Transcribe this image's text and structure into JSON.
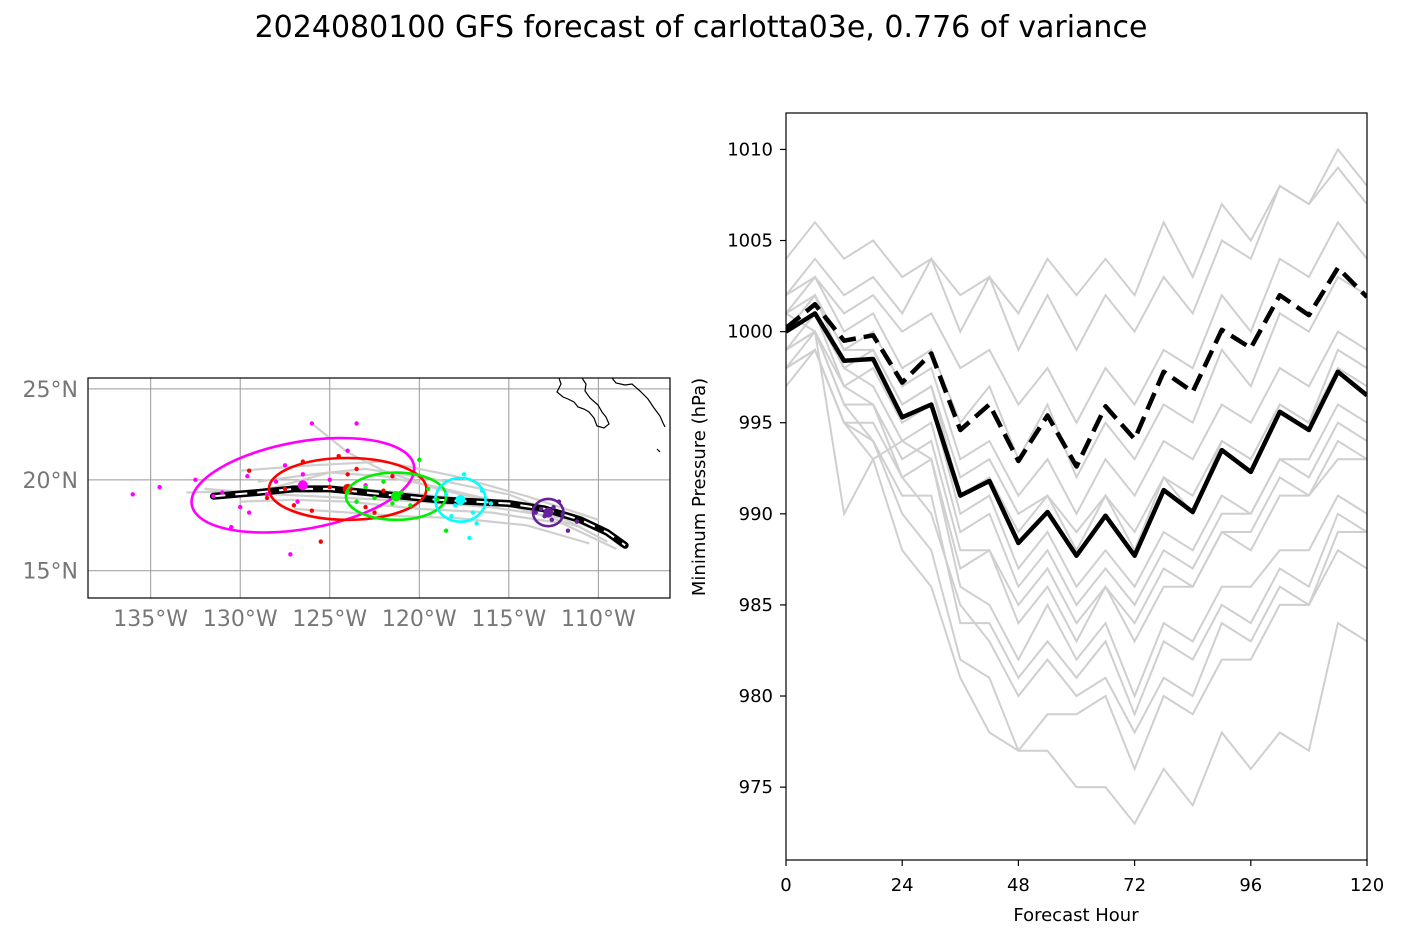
{
  "title": "2024080100 GFS forecast of carlotta03e, 0.776 of variance",
  "chart_data": [
    {
      "type": "map-track",
      "lat_ticks": [
        "15°N",
        "20°N",
        "25°N"
      ],
      "lat_values": [
        15,
        20,
        25
      ],
      "lon_ticks": [
        "135°W",
        "130°W",
        "125°W",
        "120°W",
        "115°W",
        "110°W"
      ],
      "lon_values": [
        -135,
        -130,
        -125,
        -120,
        -115,
        -110
      ],
      "lon_range": [
        -138.5,
        -106.0
      ],
      "lat_range": [
        13.5,
        25.6
      ],
      "grid": true,
      "mean_track": [
        [
          -131.5,
          19.1
        ],
        [
          -129,
          19.3
        ],
        [
          -127,
          19.5
        ],
        [
          -125,
          19.5
        ],
        [
          -123,
          19.3
        ],
        [
          -121,
          19.1
        ],
        [
          -119,
          18.9
        ],
        [
          -117,
          18.8
        ],
        [
          -115,
          18.7
        ],
        [
          -113,
          18.4
        ],
        [
          -111,
          17.8
        ],
        [
          -109.5,
          17.1
        ],
        [
          -108.5,
          16.4
        ]
      ],
      "ensemble_tracks": [
        [
          [
            -131,
            19.0
          ],
          [
            -128,
            19.6
          ],
          [
            -125,
            20.4
          ],
          [
            -122,
            20.2
          ],
          [
            -119,
            19.6
          ],
          [
            -116,
            18.9
          ],
          [
            -113,
            18.3
          ],
          [
            -110,
            17.5
          ],
          [
            -108.5,
            16.5
          ]
        ],
        [
          [
            -133,
            19.3
          ],
          [
            -129,
            19.4
          ],
          [
            -125,
            19.6
          ],
          [
            -121,
            19.3
          ],
          [
            -117,
            18.9
          ],
          [
            -113,
            18.4
          ],
          [
            -110,
            17.4
          ],
          [
            -108.7,
            16.3
          ]
        ],
        [
          [
            -130,
            18.8
          ],
          [
            -127,
            18.9
          ],
          [
            -124,
            18.8
          ],
          [
            -120,
            18.4
          ],
          [
            -116,
            18.2
          ],
          [
            -112,
            17.6
          ],
          [
            -109,
            16.2
          ]
        ],
        [
          [
            -129,
            19.9
          ],
          [
            -126,
            20.3
          ],
          [
            -123,
            20.6
          ],
          [
            -119,
            20.0
          ],
          [
            -115,
            19.2
          ],
          [
            -112,
            18.0
          ],
          [
            -109,
            16.8
          ]
        ],
        [
          [
            -132,
            19.5
          ],
          [
            -128,
            19.2
          ],
          [
            -124,
            19.0
          ],
          [
            -120,
            18.8
          ],
          [
            -116,
            18.5
          ],
          [
            -112,
            17.9
          ],
          [
            -109.5,
            16.6
          ]
        ],
        [
          [
            -126,
            23.1
          ],
          [
            -124,
            21.5
          ],
          [
            -122,
            20.5
          ],
          [
            -119,
            19.5
          ],
          [
            -115,
            18.6
          ],
          [
            -111,
            17.4
          ]
        ],
        [
          [
            -127,
            18.4
          ],
          [
            -124,
            18.2
          ],
          [
            -121,
            18.0
          ],
          [
            -118,
            17.9
          ],
          [
            -114,
            17.5
          ],
          [
            -110.5,
            16.5
          ]
        ],
        [
          [
            -130,
            20.5
          ],
          [
            -126,
            20.8
          ],
          [
            -122,
            21.0
          ],
          [
            -118,
            20.2
          ],
          [
            -114,
            19.1
          ],
          [
            -110,
            17.8
          ]
        ]
      ],
      "ellipses": [
        {
          "color": "#ff00ff",
          "center": [
            -126.5,
            19.7
          ],
          "semi_axes_deg": [
            6.3,
            2.4
          ],
          "rotation_deg": 10
        },
        {
          "color": "#ff0000",
          "center": [
            -124.0,
            19.5
          ],
          "semi_axes_deg": [
            4.4,
            1.7
          ],
          "rotation_deg": 0
        },
        {
          "color": "#00ee00",
          "center": [
            -121.3,
            19.1
          ],
          "semi_axes_deg": [
            2.8,
            1.3
          ],
          "rotation_deg": 0
        },
        {
          "color": "#00ffff",
          "center": [
            -117.7,
            18.9
          ],
          "semi_axes_deg": [
            1.4,
            1.2
          ],
          "rotation_deg": 0
        },
        {
          "color": "#662299",
          "center": [
            -112.8,
            18.2
          ],
          "semi_axes_deg": [
            0.85,
            0.75
          ],
          "rotation_deg": 0
        }
      ],
      "scatter": [
        {
          "color": "#ff00ff",
          "points": [
            [
              -136,
              19.2
            ],
            [
              -134.5,
              19.6
            ],
            [
              -131.5,
              19.1
            ],
            [
              -131,
              19.3
            ],
            [
              -130.5,
              17.4
            ],
            [
              -130,
              18.5
            ],
            [
              -129.5,
              18.2
            ],
            [
              -128.5,
              19.2
            ],
            [
              -128,
              19.9
            ],
            [
              -127.5,
              20.8
            ],
            [
              -126.5,
              20.3
            ],
            [
              -126,
              23.1
            ],
            [
              -125,
              20.0
            ],
            [
              -124,
              21.6
            ],
            [
              -123.5,
              23.1
            ],
            [
              -123,
              19.7
            ],
            [
              -127.2,
              15.9
            ],
            [
              -126.8,
              18.8
            ],
            [
              -129.6,
              20.2
            ],
            [
              -132.5,
              20.0
            ]
          ]
        },
        {
          "color": "#ff0000",
          "points": [
            [
              -128.5,
              19.0
            ],
            [
              -127.5,
              19.5
            ],
            [
              -127,
              18.6
            ],
            [
              -126.5,
              21.0
            ],
            [
              -125.5,
              16.6
            ],
            [
              -125,
              19.6
            ],
            [
              -124,
              20.3
            ],
            [
              -124.5,
              21.3
            ],
            [
              -123.5,
              20.6
            ],
            [
              -123,
              18.5
            ],
            [
              -122.5,
              18.2
            ],
            [
              -122,
              19.4
            ],
            [
              -121.5,
              20.2
            ],
            [
              -126,
              18.3
            ],
            [
              -129.5,
              20.5
            ]
          ]
        },
        {
          "color": "#00ee00",
          "points": [
            [
              -123.5,
              18.8
            ],
            [
              -123,
              19.6
            ],
            [
              -122.5,
              19.0
            ],
            [
              -121.5,
              18.7
            ],
            [
              -121,
              19.3
            ],
            [
              -120.5,
              18.6
            ],
            [
              -120,
              21.1
            ],
            [
              -119.5,
              19.5
            ],
            [
              -119,
              18.9
            ],
            [
              -118.5,
              17.2
            ],
            [
              -122,
              19.9
            ],
            [
              -124,
              19.3
            ]
          ]
        },
        {
          "color": "#00ffff",
          "points": [
            [
              -118.5,
              19.2
            ],
            [
              -118,
              18.6
            ],
            [
              -117.5,
              20.3
            ],
            [
              -117,
              18.2
            ],
            [
              -116.5,
              19.4
            ],
            [
              -116,
              18.7
            ],
            [
              -117.2,
              16.8
            ],
            [
              -118.2,
              18.0
            ],
            [
              -116.8,
              17.6
            ]
          ]
        },
        {
          "color": "#662299",
          "points": [
            [
              -113.2,
              18.4
            ],
            [
              -113,
              18.0
            ],
            [
              -112.5,
              18.5
            ],
            [
              -112,
              18.1
            ],
            [
              -112.6,
              17.8
            ],
            [
              -111.7,
              17.2
            ],
            [
              -112.2,
              18.8
            ],
            [
              -111.2,
              17.7
            ],
            [
              -113.5,
              18.2
            ]
          ]
        }
      ]
    },
    {
      "type": "line",
      "xlabel": "Forecast Hour",
      "ylabel": "Minimum Pressure (hPa)",
      "xlim": [
        0,
        120
      ],
      "ylim": [
        971,
        1012
      ],
      "xticks": [
        0,
        24,
        48,
        72,
        96,
        120
      ],
      "yticks": [
        975,
        980,
        985,
        990,
        995,
        1000,
        1005,
        1010
      ],
      "x": [
        0,
        6,
        12,
        18,
        24,
        30,
        36,
        42,
        48,
        54,
        60,
        66,
        72,
        78,
        84,
        90,
        96,
        102,
        108,
        114,
        120
      ],
      "series": [
        {
          "style": "mean-solid",
          "values": [
            1000.0,
            1001.0,
            998.4,
            998.5,
            995.3,
            996.0,
            991.0,
            991.8,
            988.4,
            990.1,
            987.7,
            989.9,
            987.7,
            991.3,
            990.1,
            993.5,
            992.3,
            995.6,
            994.6,
            997.8,
            996.5
          ]
        },
        {
          "style": "mean-dashed",
          "values": [
            1000.2,
            1001.5,
            999.5,
            999.8,
            997.2,
            998.8,
            994.6,
            996.0,
            992.9,
            995.4,
            992.6,
            995.9,
            994.1,
            997.8,
            996.7,
            1000.1,
            999.1,
            1002.0,
            1000.9,
            1003.5,
            1001.9
          ]
        },
        {
          "style": "member",
          "values": [
            1004,
            1006,
            1004,
            1005,
            1003,
            1004,
            1002,
            1003,
            1001,
            1004,
            1002,
            1004,
            1002,
            1006,
            1003,
            1007,
            1005,
            1008,
            1007,
            1010,
            1008
          ]
        },
        {
          "style": "member",
          "values": [
            1002,
            1004,
            1002,
            1003,
            1001,
            1004,
            1000,
            1003,
            999,
            1002,
            999,
            1002,
            1000,
            1003,
            1001,
            1005,
            1004,
            1008,
            1007,
            1009,
            1007
          ]
        },
        {
          "style": "member",
          "values": [
            1002,
            1003,
            1001,
            1002,
            1000,
            1001,
            998,
            999,
            996,
            998,
            995,
            998,
            996,
            999,
            998,
            1002,
            1000,
            1004,
            1003,
            1006,
            1004
          ]
        },
        {
          "style": "member",
          "values": [
            1001,
            1003,
            1000,
            1001,
            998,
            999,
            995,
            997,
            993,
            996,
            992,
            995,
            993,
            996,
            995,
            999,
            997,
            1001,
            1000,
            1003,
            1002
          ]
        },
        {
          "style": "member",
          "values": [
            1000,
            1002,
            999,
            1000,
            997,
            998,
            993,
            994,
            991,
            993,
            990,
            993,
            991,
            994,
            993,
            996,
            995,
            998,
            997,
            1000,
            999
          ]
        },
        {
          "style": "member",
          "values": [
            1000,
            1001,
            998,
            999,
            996,
            997,
            991,
            992,
            989,
            991,
            988,
            991,
            989,
            992,
            991,
            994,
            993,
            996,
            995,
            998,
            997
          ]
        },
        {
          "style": "member",
          "values": [
            999,
            1001,
            997,
            998,
            995,
            996,
            990,
            991,
            987,
            989,
            986,
            988,
            986,
            989,
            988,
            991,
            990,
            993,
            993,
            996,
            995
          ]
        },
        {
          "style": "member",
          "values": [
            1001,
            1000,
            990,
            993,
            994,
            993,
            987,
            988,
            985,
            987,
            984,
            986,
            983,
            986,
            986,
            989,
            988,
            991,
            991,
            994,
            993
          ]
        },
        {
          "style": "member",
          "values": [
            998,
            1000,
            996,
            996,
            993,
            994,
            988,
            988,
            984,
            986,
            983,
            986,
            984,
            987,
            986,
            989,
            989,
            992,
            991,
            993,
            993
          ]
        },
        {
          "style": "member",
          "values": [
            998,
            999,
            995,
            995,
            992,
            993,
            986,
            985,
            982,
            985,
            982,
            984,
            980,
            984,
            983,
            986,
            986,
            988,
            988,
            991,
            990
          ]
        },
        {
          "style": "member",
          "values": [
            997,
            999,
            995,
            994,
            991,
            991,
            984,
            984,
            981,
            983,
            981,
            983,
            979,
            983,
            982,
            985,
            984,
            987,
            986,
            990,
            989
          ]
        },
        {
          "style": "member",
          "values": [
            999,
            1000,
            996,
            994,
            990,
            988,
            982,
            981,
            977,
            979,
            979,
            980,
            976,
            980,
            979,
            982,
            982,
            985,
            985,
            989,
            989
          ]
        },
        {
          "style": "member",
          "values": [
            998,
            999,
            995,
            993,
            988,
            986,
            981,
            978,
            977,
            977,
            975,
            975,
            973,
            976,
            974,
            978,
            976,
            978,
            977,
            984,
            983
          ]
        },
        {
          "style": "member",
          "values": [
            1000,
            1002,
            998,
            997,
            994,
            995,
            989,
            990,
            986,
            988,
            985,
            987,
            985,
            988,
            987,
            990,
            990,
            993,
            992,
            995,
            994
          ]
        },
        {
          "style": "member",
          "values": [
            1001,
            1002,
            999,
            999,
            996,
            997,
            992,
            993,
            990,
            991,
            989,
            991,
            988,
            992,
            990,
            994,
            993,
            996,
            995,
            999,
            998
          ]
        },
        {
          "style": "member",
          "values": [
            999,
            1000,
            997,
            996,
            992,
            990,
            985,
            983,
            980,
            982,
            980,
            981,
            978,
            981,
            980,
            984,
            983,
            986,
            985,
            988,
            987
          ]
        }
      ]
    }
  ]
}
